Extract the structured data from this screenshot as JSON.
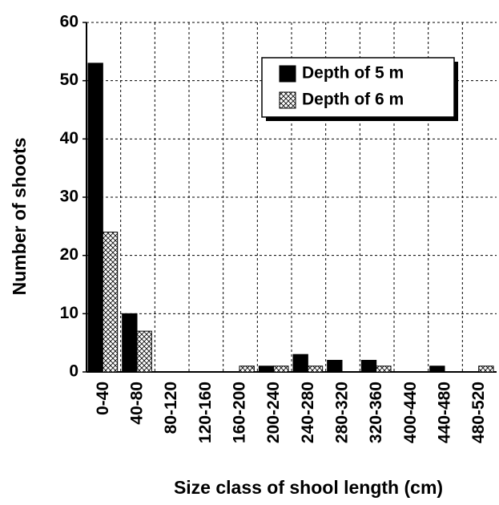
{
  "chart_data": {
    "type": "bar",
    "xlabel": "Size class of shool length (cm)",
    "ylabel": "Number of shoots",
    "categories": [
      "0-40",
      "40-80",
      "80-120",
      "120-160",
      "160-200",
      "200-240",
      "240-280",
      "280-320",
      "320-360",
      "400-440",
      "440-480",
      "480-520"
    ],
    "series": [
      {
        "name": "Depth of 5 m",
        "color": "#000000",
        "values": [
          53,
          10,
          0,
          0,
          0,
          1,
          3,
          2,
          2,
          0,
          1,
          0
        ]
      },
      {
        "name": "Depth of 6 m",
        "color": "#000000",
        "pattern": "crosshatch",
        "values": [
          24,
          7,
          0,
          0,
          1,
          1,
          1,
          0,
          1,
          0,
          0,
          1
        ]
      }
    ],
    "ylim": [
      0,
      60
    ],
    "yticks": [
      0,
      10,
      20,
      30,
      40,
      50,
      60
    ],
    "grid": true,
    "legend": "upper right"
  }
}
